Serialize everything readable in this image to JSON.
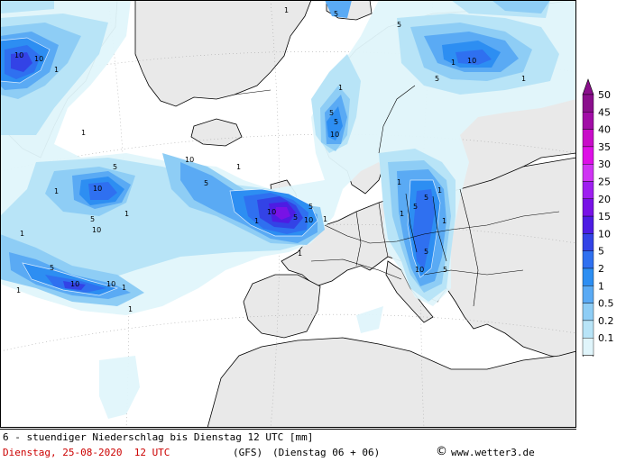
{
  "map": {
    "colors": {
      "background": "#ffffff",
      "land": "#e9e9e9",
      "coast": "#000000",
      "graticule": "#aaaaaa"
    },
    "contour_labels": [
      "10",
      "10",
      "1",
      "1",
      "5",
      "5",
      "10",
      "1",
      "10",
      "1",
      "10",
      "5",
      "1",
      "10",
      "1",
      "5",
      "1",
      "10",
      "5",
      "1",
      "1",
      "5",
      "1",
      "1",
      "1",
      "5",
      "1",
      "10",
      "5",
      "10",
      "1",
      "5",
      "1",
      "10",
      "5",
      "5",
      "1",
      "1",
      "1",
      "5",
      "1",
      "5",
      "10",
      "5",
      "10",
      "5",
      "1"
    ]
  },
  "legend": {
    "levels": [
      "50",
      "45",
      "40",
      "35",
      "30",
      "25",
      "20",
      "15",
      "10",
      "5",
      "2",
      "1",
      "0.5",
      "0.2",
      "0.1"
    ],
    "colors": [
      "#8a0f8c",
      "#a10da6",
      "#c80cc8",
      "#dd10e6",
      "#cf34f3",
      "#9e1ff0",
      "#7812e6",
      "#4d1ce3",
      "#3343e6",
      "#2f70f0",
      "#2d8ef2",
      "#5aaaf4",
      "#8ecdf5",
      "#b8e4f7",
      "#e0f5fb"
    ]
  },
  "footer": {
    "line1": "6 - stuendiger Niederschlag bis Dienstag 12 UTC [mm]",
    "date": "Dienstag, 25-08-2020  12 UTC",
    "model": "(GFS)",
    "run": "(Dienstag 06 + 06)",
    "credit": "www.wetter3.de"
  }
}
